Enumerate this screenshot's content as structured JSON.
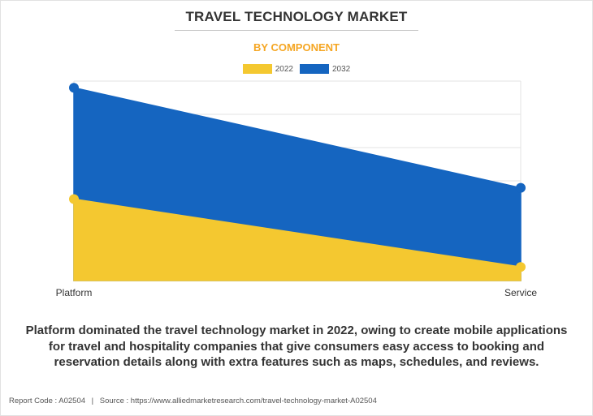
{
  "title": "TRAVEL TECHNOLOGY MARKET",
  "subtitle": "BY COMPONENT",
  "description": "Platform dominated the travel technology market in 2022, owing to create mobile applications for travel and hospitality companies that give consumers easy access to booking and reservation details along with extra features such as maps, schedules, and reviews.",
  "footer": {
    "report_code": "Report Code : A02504",
    "separator": "|",
    "source": "Source : https://www.alliedmarketresearch.com/travel-technology-market-A02504"
  },
  "colors": {
    "accent": "#f5a623",
    "series_2022": "#f4c830",
    "series_2032": "#1565c0",
    "grid": "#e3e3e3"
  },
  "chart_data": {
    "type": "area",
    "categories": [
      "Platform",
      "Service"
    ],
    "series": [
      {
        "name": "2022",
        "values": [
          24.5,
          4.1
        ]
      },
      {
        "name": "2032",
        "values": [
          58.0,
          27.9
        ]
      }
    ],
    "ylim": [
      0,
      60
    ],
    "y_gridlines": 6,
    "grid": true,
    "y_tick_labels_shown": false,
    "legend": "top-center",
    "xlabel": "",
    "ylabel": ""
  }
}
